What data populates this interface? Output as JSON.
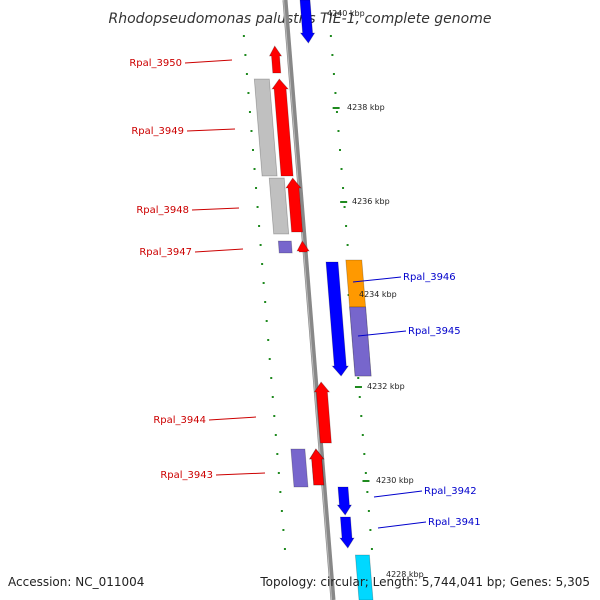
{
  "title": "Rhodopseudomonas palustris TIE-1, complete genome",
  "footer": {
    "accession": "Accession: NC_011004",
    "topology": "Topology: circular; Length: 5,744,041 bp; Genes: 5,305"
  },
  "colors": {
    "backbone": "#888888",
    "tick": "#1f8a1f",
    "label_left": "#cc0000",
    "label_right": "#0000cc"
  },
  "position_labels": [
    "4240 kbp",
    "4238 kbp",
    "4236 kbp",
    "4234 kbp",
    "4232 kbp",
    "4230 kbp",
    "4228 kbp"
  ],
  "left_labels": [
    "Rpal_3950",
    "Rpal_3949",
    "Rpal_3948",
    "Rpal_3947",
    "Rpal_3944",
    "Rpal_3943"
  ],
  "right_labels": [
    "Rpal_3946",
    "Rpal_3945",
    "Rpal_3942",
    "Rpal_3941"
  ],
  "genes": [
    {
      "color": "#ff0000"
    },
    {
      "color": "#ff0000"
    },
    {
      "color": "#c0c0c0"
    },
    {
      "color": "#ff0000"
    },
    {
      "color": "#c0c0c0"
    },
    {
      "color": "#ff0000"
    },
    {
      "color": "#7766cc"
    },
    {
      "color": "#ff0000"
    },
    {
      "color": "#ff0000"
    },
    {
      "color": "#7766cc"
    },
    {
      "color": "#ff0000"
    },
    {
      "color": "#7766cc"
    },
    {
      "color": "#0000ff"
    },
    {
      "color": "#ff9900"
    },
    {
      "color": "#7766cc"
    },
    {
      "color": "#0000ff"
    },
    {
      "color": "#0000ff"
    },
    {
      "color": "#0000ff"
    },
    {
      "color": "#00d8ff"
    }
  ]
}
